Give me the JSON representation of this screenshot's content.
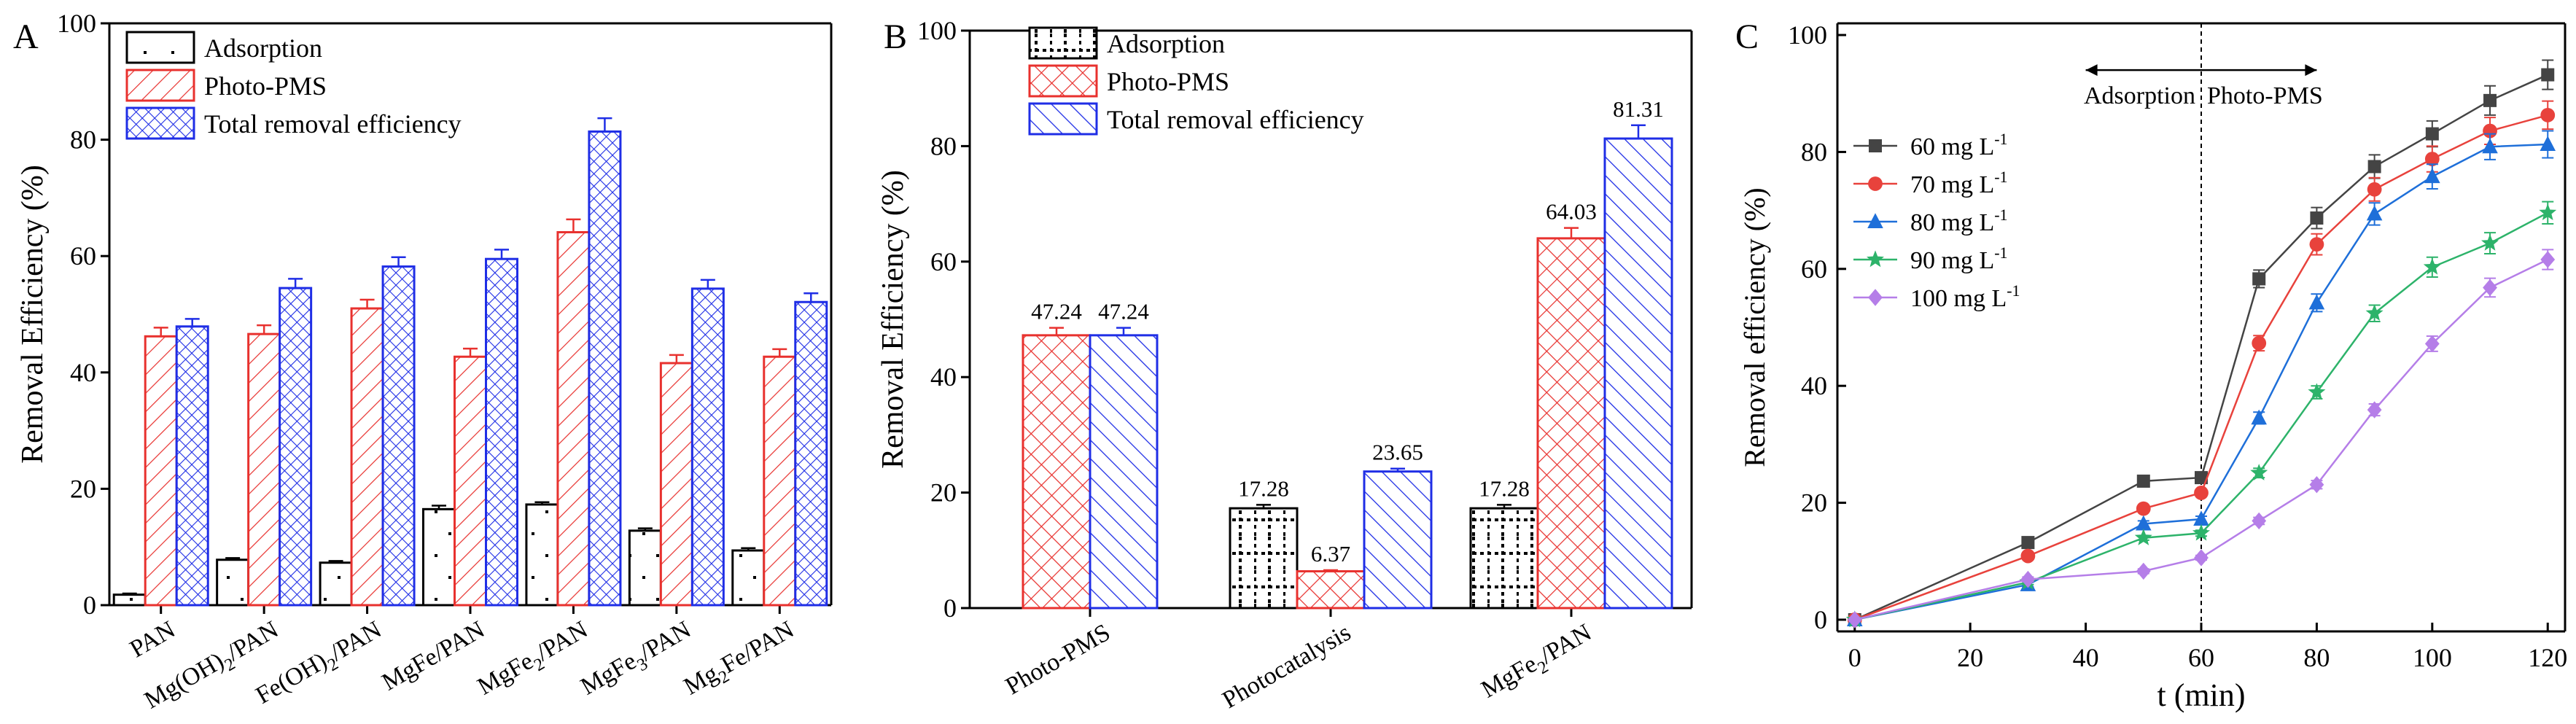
{
  "colors": {
    "black": "#000000",
    "red": "#e8312e",
    "blue": "#1f2ee6",
    "s60": "#444444",
    "s70": "#e8423c",
    "s80": "#1e6fd9",
    "s90": "#2db36a",
    "s100": "#b57ee8"
  },
  "chart_data": [
    {
      "panel": "A",
      "type": "bar",
      "ylabel": "Removal Efficiency (%)",
      "ylim": [
        0,
        100
      ],
      "yticks": [
        0,
        20,
        40,
        60,
        80,
        100
      ],
      "grid": false,
      "legend_position": "top-left",
      "categories": [
        "PAN",
        "Mg(OH)2/PAN",
        "Fe(OH)2/PAN",
        "MgFe/PAN",
        "MgFe2/PAN",
        "MgFe3/PAN",
        "Mg2Fe/PAN"
      ],
      "category_labels": [
        {
          "main": "PAN",
          "sub": "",
          "rest": ""
        },
        {
          "main": "Mg(OH)",
          "sub": "2",
          "rest": "/PAN"
        },
        {
          "main": "Fe(OH)",
          "sub": "2",
          "rest": "/PAN"
        },
        {
          "main": "MgFe/PAN",
          "sub": "",
          "rest": ""
        },
        {
          "main": "MgFe",
          "sub": "2",
          "rest": "/PAN"
        },
        {
          "main": "MgFe",
          "sub": "3",
          "rest": "/PAN"
        },
        {
          "main": "Mg",
          "sub": "2",
          "rest": "Fe/PAN"
        }
      ],
      "series": [
        {
          "name": "Adsorption",
          "pattern": "dots",
          "color": "#000000",
          "values": [
            1.8,
            7.8,
            7.3,
            16.5,
            17.3,
            12.8,
            9.4
          ],
          "errors": [
            0.2,
            0.3,
            0.3,
            0.6,
            0.4,
            0.4,
            0.4
          ]
        },
        {
          "name": "Photo-PMS",
          "pattern": "diag",
          "color": "#e8312e",
          "values": [
            46.2,
            46.6,
            51.0,
            42.7,
            64.1,
            41.6,
            42.7
          ],
          "errors": [
            1.5,
            1.5,
            1.5,
            1.4,
            2.2,
            1.4,
            1.3
          ]
        },
        {
          "name": "Total removal efficiency",
          "pattern": "cross",
          "color": "#1f2ee6",
          "values": [
            47.9,
            54.5,
            58.2,
            59.5,
            81.4,
            54.4,
            52.1
          ],
          "errors": [
            1.3,
            1.6,
            1.6,
            1.6,
            2.3,
            1.5,
            1.5
          ]
        }
      ]
    },
    {
      "panel": "B",
      "type": "bar",
      "ylabel": "Removal Efficiency (%)",
      "ylim": [
        0,
        100
      ],
      "yticks": [
        0,
        20,
        40,
        60,
        80,
        100
      ],
      "grid": false,
      "legend_position": "top-left",
      "categories": [
        "Photo-PMS",
        "Photocatalysis",
        "MgFe2/PAN"
      ],
      "category_labels": [
        {
          "main": "Photo-PMS",
          "sub": "",
          "rest": ""
        },
        {
          "main": "Photocatalysis",
          "sub": "",
          "rest": ""
        },
        {
          "main": "MgFe",
          "sub": "2",
          "rest": "/PAN"
        }
      ],
      "series": [
        {
          "name": "Adsorption",
          "pattern": "grid",
          "color": "#000000",
          "values": [
            null,
            17.28,
            17.28
          ],
          "errors": [
            null,
            0.6,
            0.6
          ],
          "labels": [
            "",
            "17.28",
            "17.28"
          ]
        },
        {
          "name": "Photo-PMS",
          "pattern": "cross",
          "color": "#e8312e",
          "values": [
            47.24,
            6.37,
            64.03
          ],
          "errors": [
            1.3,
            0.2,
            1.8
          ],
          "labels": [
            "47.24",
            "6.37",
            "64.03"
          ]
        },
        {
          "name": "Total removal efficiency",
          "pattern": "diag-back",
          "color": "#1f2ee6",
          "values": [
            47.24,
            23.65,
            81.31
          ],
          "errors": [
            1.3,
            0.5,
            2.3
          ],
          "labels": [
            "47.24",
            "23.65",
            "81.31"
          ]
        }
      ]
    },
    {
      "panel": "C",
      "type": "line",
      "xlabel": "t (min)",
      "ylabel": "Removal efficiency (%)",
      "xlim": [
        -3,
        123
      ],
      "ylim": [
        -2,
        102
      ],
      "xticks": [
        0,
        20,
        40,
        60,
        80,
        100,
        120
      ],
      "yticks": [
        0,
        20,
        40,
        60,
        80,
        100
      ],
      "grid": false,
      "legend_position": "upper-left",
      "x": [
        0,
        30,
        50,
        60,
        70,
        80,
        90,
        100,
        110,
        120
      ],
      "divider_x": 60,
      "annotation": {
        "left": "Adsorption",
        "right": "Photo-PMS",
        "arrow_from": 40,
        "arrow_to": 80,
        "y": 94
      },
      "series": [
        {
          "name": "60 mg L-1",
          "label_main": "60 mg L",
          "label_sup": "-1",
          "color": "#444444",
          "marker": "square",
          "values": [
            0,
            13.2,
            23.7,
            24.3,
            58.3,
            68.7,
            77.5,
            83.1,
            88.8,
            93.2
          ],
          "errors": [
            0.3,
            0.6,
            0.6,
            0.7,
            1.5,
            1.8,
            2.0,
            2.2,
            2.5,
            2.5
          ]
        },
        {
          "name": "70 mg L-1",
          "label_main": "70 mg L",
          "label_sup": "-1",
          "color": "#e8423c",
          "marker": "circle",
          "values": [
            0,
            10.9,
            19.0,
            21.7,
            47.3,
            64.2,
            73.6,
            78.8,
            83.6,
            86.3
          ],
          "errors": [
            0.3,
            0.5,
            0.5,
            0.6,
            1.3,
            1.8,
            2.0,
            2.2,
            2.3,
            2.4
          ]
        },
        {
          "name": "80 mg L-1",
          "label_main": "80 mg L",
          "label_sup": "-1",
          "color": "#1e6fd9",
          "marker": "triangle",
          "values": [
            0,
            6.0,
            16.4,
            17.2,
            34.5,
            54.2,
            69.4,
            75.8,
            80.9,
            81.3
          ],
          "errors": [
            0.3,
            0.4,
            0.5,
            0.5,
            1.0,
            1.5,
            1.9,
            2.1,
            2.2,
            2.3
          ]
        },
        {
          "name": "90 mg L-1",
          "label_main": "90 mg L",
          "label_sup": "-1",
          "color": "#2db36a",
          "marker": "star",
          "values": [
            0,
            6.4,
            14.0,
            14.8,
            25.1,
            38.9,
            52.4,
            60.3,
            64.4,
            69.6
          ],
          "errors": [
            0.3,
            0.4,
            0.4,
            0.5,
            0.8,
            1.1,
            1.4,
            1.7,
            1.8,
            1.9
          ]
        },
        {
          "name": "100 mg L-1",
          "label_main": "100 mg L",
          "label_sup": "-1",
          "color": "#b57ee8",
          "marker": "diamond",
          "values": [
            0,
            6.9,
            8.3,
            10.6,
            16.9,
            23.1,
            35.9,
            47.2,
            56.8,
            61.6
          ],
          "errors": [
            0.3,
            0.4,
            0.4,
            0.4,
            0.6,
            0.7,
            1.0,
            1.3,
            1.6,
            1.7
          ]
        }
      ]
    }
  ],
  "panel_letters": [
    "A",
    "B",
    "C"
  ]
}
